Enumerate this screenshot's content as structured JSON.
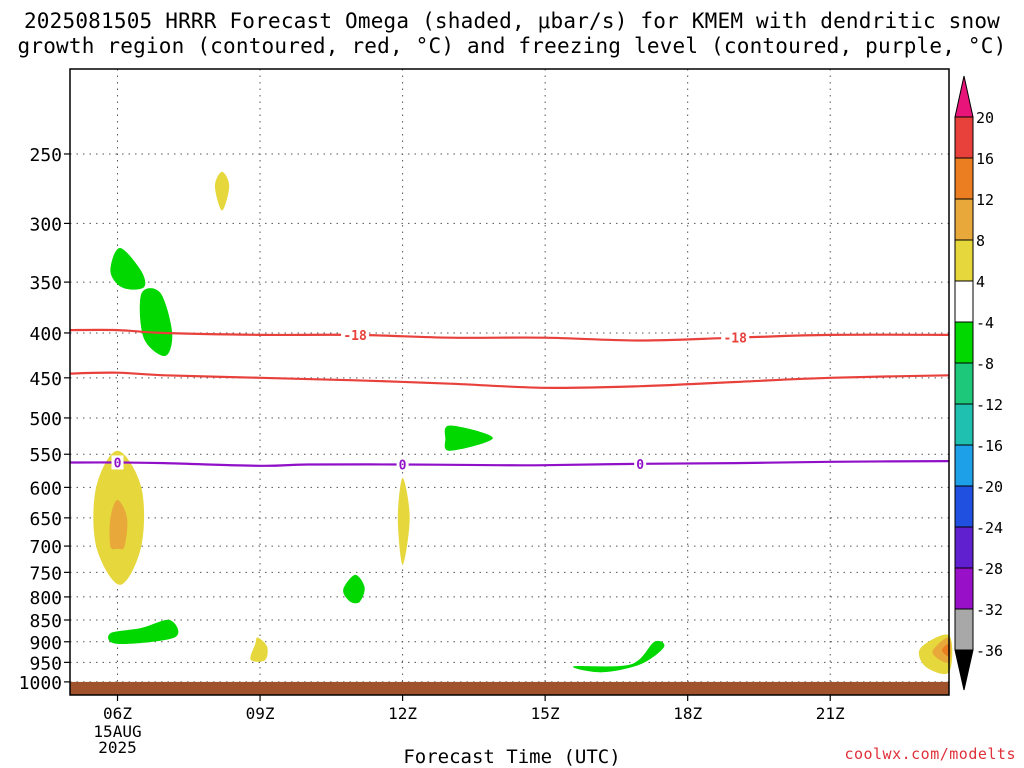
{
  "title": {
    "line1": "2025081505 HRRR Forecast Omega (shaded, μbar/s) for KMEM with dendritic snow",
    "line2": "growth region (contoured, red, °C) and freezing level (contoured, purple, °C)"
  },
  "xlabel": "Forecast Time (UTC)",
  "credit": "coolwx.com/modelts",
  "chart_data": {
    "type": "time-height cross section",
    "x_range_hours": [
      5,
      23.5
    ],
    "x_ticks": [
      {
        "hour": 6,
        "label": "06Z",
        "sub": [
          "15AUG",
          "2025"
        ]
      },
      {
        "hour": 9,
        "label": "09Z"
      },
      {
        "hour": 12,
        "label": "12Z"
      },
      {
        "hour": 15,
        "label": "15Z"
      },
      {
        "hour": 18,
        "label": "18Z"
      },
      {
        "hour": 21,
        "label": "21Z"
      }
    ],
    "y_ticks_hpa": [
      250,
      300,
      350,
      400,
      450,
      500,
      550,
      600,
      650,
      700,
      750,
      800,
      850,
      900,
      950,
      1000
    ],
    "y_range_hpa": [
      200,
      1035
    ],
    "surface": {
      "from_hpa": 1000,
      "to_hpa": 1035,
      "color": "#a0522d"
    },
    "contours": [
      {
        "name": "dgz_-18",
        "color": "#e8413c",
        "label": "-18",
        "label_hours": [
          11,
          19
        ],
        "points": [
          [
            5,
            397
          ],
          [
            6,
            397
          ],
          [
            7,
            400
          ],
          [
            9,
            402
          ],
          [
            11,
            402
          ],
          [
            13,
            405
          ],
          [
            15,
            405
          ],
          [
            17,
            408
          ],
          [
            19,
            405
          ],
          [
            21,
            402
          ],
          [
            23.5,
            402
          ]
        ]
      },
      {
        "name": "dgz_-12",
        "color": "#e8413c",
        "label": "",
        "label_hours": [],
        "points": [
          [
            5,
            445
          ],
          [
            6,
            444
          ],
          [
            7,
            447
          ],
          [
            9,
            450
          ],
          [
            11,
            453
          ],
          [
            13,
            457
          ],
          [
            15,
            462
          ],
          [
            17,
            460
          ],
          [
            19,
            455
          ],
          [
            21,
            450
          ],
          [
            23.5,
            447
          ]
        ]
      },
      {
        "name": "freezing_level_0",
        "color": "#9010c8",
        "label": "0",
        "label_hours": [
          6,
          12,
          17
        ],
        "points": [
          [
            5,
            562
          ],
          [
            6,
            562
          ],
          [
            7,
            563
          ],
          [
            9,
            567
          ],
          [
            10,
            565
          ],
          [
            12,
            565
          ],
          [
            14,
            566
          ],
          [
            15,
            566
          ],
          [
            17,
            564
          ],
          [
            19,
            563
          ],
          [
            21,
            561
          ],
          [
            23.5,
            560
          ]
        ]
      }
    ],
    "shaded_regions": [
      {
        "name": "upward-4to4",
        "color": "#e6d83c",
        "points": [
          [
            8.2,
            262
          ],
          [
            8.35,
            272
          ],
          [
            8.2,
            290
          ],
          [
            8.05,
            272
          ]
        ]
      },
      {
        "name": "downward-green",
        "color": "#00d800",
        "points": [
          [
            6.05,
            320
          ],
          [
            6.5,
            340
          ],
          [
            6.55,
            355
          ],
          [
            6.1,
            355
          ],
          [
            5.85,
            340
          ]
        ]
      },
      {
        "name": "downward-green",
        "color": "#00d800",
        "points": [
          [
            6.5,
            361
          ],
          [
            6.9,
            360
          ],
          [
            7.15,
            400
          ],
          [
            7.0,
            425
          ],
          [
            6.55,
            405
          ]
        ]
      },
      {
        "name": "downward-green",
        "color": "#00d800",
        "points": [
          [
            13.0,
            510
          ],
          [
            13.9,
            527
          ],
          [
            13.0,
            545
          ],
          [
            12.9,
            528
          ]
        ]
      },
      {
        "name": "upward-4to8",
        "color": "#e6d83c",
        "points": [
          [
            6.0,
            545
          ],
          [
            6.5,
            600
          ],
          [
            6.5,
            700
          ],
          [
            6.05,
            775
          ],
          [
            5.55,
            700
          ],
          [
            5.55,
            600
          ]
        ]
      },
      {
        "name": "upward-8to12",
        "color": "#e8a83a",
        "points": [
          [
            6.0,
            620
          ],
          [
            6.2,
            650
          ],
          [
            6.15,
            700
          ],
          [
            6.0,
            705
          ],
          [
            5.85,
            700
          ],
          [
            5.85,
            650
          ]
        ]
      },
      {
        "name": "upward-4to8",
        "color": "#e6d83c",
        "points": [
          [
            12.0,
            585
          ],
          [
            12.15,
            650
          ],
          [
            12.0,
            735
          ],
          [
            11.9,
            650
          ]
        ]
      },
      {
        "name": "downward-green",
        "color": "#00d800",
        "points": [
          [
            11.0,
            755
          ],
          [
            11.2,
            780
          ],
          [
            11.1,
            810
          ],
          [
            10.9,
            810
          ],
          [
            10.75,
            785
          ]
        ]
      },
      {
        "name": "downward-green",
        "color": "#00d800",
        "points": [
          [
            5.85,
            880
          ],
          [
            6.5,
            868
          ],
          [
            7.1,
            850
          ],
          [
            7.2,
            890
          ],
          [
            6.0,
            905
          ]
        ]
      },
      {
        "name": "upward-4to8",
        "color": "#e6d83c",
        "points": [
          [
            8.95,
            890
          ],
          [
            9.15,
            912
          ],
          [
            9.1,
            945
          ],
          [
            8.8,
            943
          ],
          [
            8.9,
            905
          ]
        ]
      },
      {
        "name": "downward-green",
        "color": "#00d800",
        "points": [
          [
            15.6,
            960
          ],
          [
            16.8,
            955
          ],
          [
            17.3,
            900
          ],
          [
            17.5,
            913
          ],
          [
            17.0,
            955
          ],
          [
            16.2,
            975
          ]
        ]
      },
      {
        "name": "upward-4to8",
        "color": "#e6d83c",
        "points": [
          [
            23.5,
            885
          ],
          [
            23.5,
            975
          ],
          [
            23.0,
            960
          ],
          [
            22.9,
            915
          ]
        ]
      },
      {
        "name": "upward-8to12",
        "color": "#e8a83a",
        "points": [
          [
            23.5,
            890
          ],
          [
            23.5,
            950
          ],
          [
            23.15,
            925
          ]
        ]
      },
      {
        "name": "upward-12to16",
        "color": "#ec7e22",
        "points": [
          [
            23.5,
            905
          ],
          [
            23.5,
            935
          ],
          [
            23.35,
            920
          ]
        ]
      }
    ],
    "colorbar": {
      "labels": [
        "20",
        "16",
        "12",
        "8",
        "4",
        "-4",
        "-8",
        "-12",
        "-16",
        "-20",
        "-24",
        "-28",
        "-32",
        "-36"
      ],
      "segments": [
        {
          "color": "#e8413c"
        },
        {
          "color": "#ec7e22"
        },
        {
          "color": "#e8a83a"
        },
        {
          "color": "#e6d83c"
        },
        {
          "color": "#ffffff"
        },
        {
          "color": "#00d800"
        },
        {
          "color": "#1ec87a"
        },
        {
          "color": "#20c0b0"
        },
        {
          "color": "#1ea0e8"
        },
        {
          "color": "#2050e0"
        },
        {
          "color": "#6020d0"
        },
        {
          "color": "#9810c8"
        },
        {
          "color": "#a8a8a8"
        }
      ],
      "top_arrow_color": "#e8147a",
      "bottom_arrow_color": "#000000"
    }
  }
}
